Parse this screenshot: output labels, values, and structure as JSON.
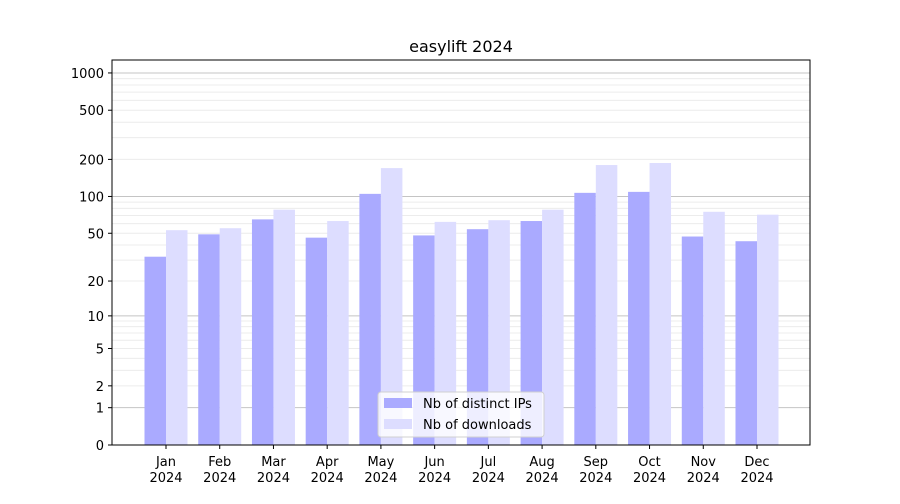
{
  "chart_data": {
    "type": "bar",
    "title": "easylift 2024",
    "xlabel": "",
    "ylabel": "",
    "yscale": "log(1+y)",
    "ylim": [
      0,
      1300
    ],
    "yticks": [
      0,
      1,
      2,
      5,
      10,
      20,
      50,
      100,
      200,
      500,
      1000
    ],
    "grid": true,
    "legend_position": "bottom-center",
    "categories": [
      "Jan\n2024",
      "Feb\n2024",
      "Mar\n2024",
      "Apr\n2024",
      "May\n2024",
      "Jun\n2024",
      "Jul\n2024",
      "Aug\n2024",
      "Sep\n2024",
      "Oct\n2024",
      "Nov\n2024",
      "Dec\n2024"
    ],
    "series": [
      {
        "name": "Nb of distinct IPs",
        "color": "#aaaaff",
        "values": [
          32,
          49,
          65,
          46,
          105,
          48,
          54,
          63,
          107,
          109,
          47,
          43
        ]
      },
      {
        "name": "Nb of downloads",
        "color": "#ddddff",
        "values": [
          53,
          55,
          78,
          63,
          170,
          62,
          64,
          78,
          180,
          187,
          75,
          71
        ]
      }
    ]
  }
}
